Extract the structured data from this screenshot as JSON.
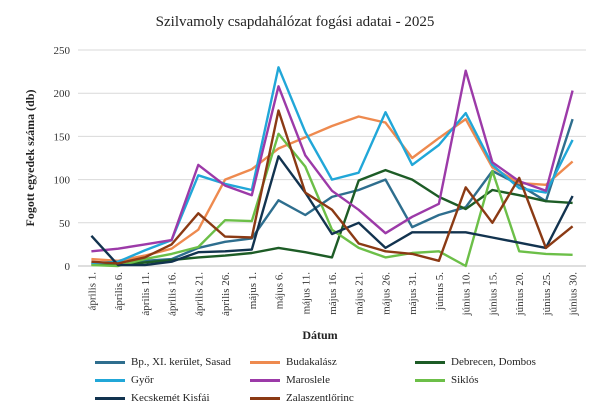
{
  "chart_data": {
    "type": "line",
    "title": "Szilvamoly csapdahálózat fogási adatai - 2025",
    "xlabel": "Dátum",
    "ylabel": "Fogott egyedek száma (db)",
    "ylim": [
      0,
      250
    ],
    "yticks": [
      0,
      50,
      100,
      150,
      200,
      250
    ],
    "grid": true,
    "legend_position": "bottom",
    "categories": [
      "április 1.",
      "április 6.",
      "április 11.",
      "április 16.",
      "április 21.",
      "április 26.",
      "május 1.",
      "május 6.",
      "május 11.",
      "május 16.",
      "május 21.",
      "május 26.",
      "május 31.",
      "június 5.",
      "június 10.",
      "június 15.",
      "június 20.",
      "június 25.",
      "június 30."
    ],
    "series": [
      {
        "name": "Bp., XI. kerület, Sasad",
        "color": "#2e6e8e",
        "values": [
          2,
          5,
          6,
          8,
          21,
          28,
          32,
          76,
          59,
          80,
          88,
          100,
          45,
          59,
          68,
          110,
          94,
          75,
          170
        ]
      },
      {
        "name": "Budakalász",
        "color": "#ee8a4f",
        "values": [
          8,
          6,
          12,
          20,
          42,
          100,
          112,
          136,
          149,
          162,
          173,
          166,
          125,
          148,
          170,
          114,
          96,
          94,
          121
        ]
      },
      {
        "name": "Debrecen, Dombos",
        "color": "#1d5c26",
        "values": [
          2,
          1,
          4,
          7,
          10,
          12,
          15,
          21,
          16,
          10,
          99,
          111,
          100,
          80,
          66,
          88,
          82,
          75,
          73
        ]
      },
      {
        "name": "Győr",
        "color": "#21a7d8",
        "values": [
          3,
          5,
          18,
          30,
          105,
          95,
          88,
          230,
          155,
          100,
          108,
          178,
          117,
          140,
          177,
          117,
          90,
          85,
          146
        ]
      },
      {
        "name": "Maroslele",
        "color": "#9c3aa8",
        "values": [
          17,
          20,
          25,
          30,
          117,
          93,
          82,
          208,
          128,
          87,
          65,
          38,
          57,
          72,
          226,
          120,
          98,
          87,
          203
        ]
      },
      {
        "name": "Siklós",
        "color": "#6cbf48",
        "values": [
          1,
          0,
          8,
          14,
          22,
          53,
          52,
          153,
          115,
          42,
          21,
          10,
          15,
          17,
          0,
          110,
          17,
          14,
          13
        ]
      },
      {
        "name": "Kecskemét Kisfái",
        "color": "#12334f",
        "values": [
          35,
          1,
          1,
          5,
          16,
          17,
          19,
          127,
          85,
          37,
          50,
          21,
          39,
          39,
          39,
          33,
          27,
          21,
          81
        ]
      },
      {
        "name": "Zalaszentlőrinc",
        "color": "#8b3a14",
        "values": [
          5,
          3,
          10,
          25,
          61,
          34,
          33,
          180,
          85,
          65,
          26,
          17,
          14,
          6,
          91,
          50,
          102,
          21,
          46
        ]
      }
    ]
  }
}
